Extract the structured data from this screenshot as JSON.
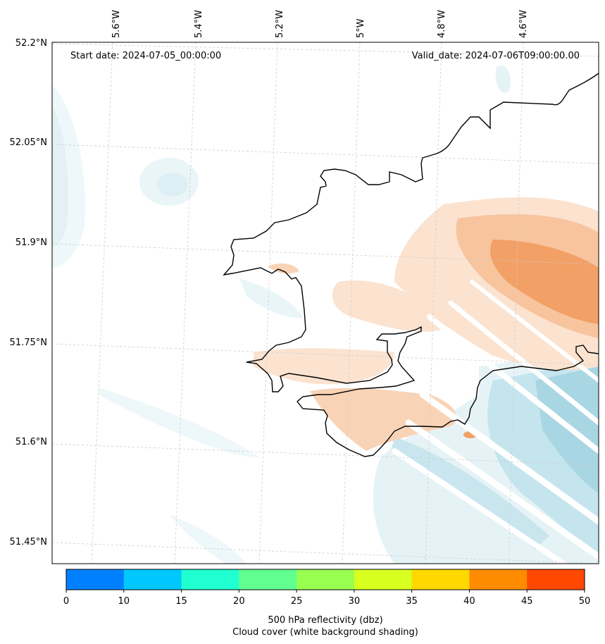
{
  "annotations": {
    "start_date": "Start date: 2024-07-05_00:00:00",
    "valid_date": "Valid_date: 2024-07-06T09:00:00.00"
  },
  "longitude_labels": [
    "5.6°W",
    "5.4°W",
    "5.2°W",
    "5°W",
    "4.8°W",
    "4.6°W"
  ],
  "latitude_labels": [
    "52.2°N",
    "52.05°N",
    "51.9°N",
    "51.75°N",
    "51.6°N",
    "51.45°N"
  ],
  "colorbar": {
    "ticks": [
      "0",
      "10",
      "15",
      "20",
      "25",
      "30",
      "35",
      "40",
      "45",
      "50"
    ],
    "colors": [
      "#0080ff",
      "#00c8ff",
      "#20ffd0",
      "#60ff90",
      "#98ff50",
      "#d8ff20",
      "#ffd800",
      "#ff8c00",
      "#ff4800"
    ],
    "label_line1": "500 hPa reflectivity (dbz)",
    "label_line2": "Cloud cover (white background shading)"
  },
  "colors": {
    "coast": "#000000",
    "gridline": "#cccccc",
    "reflectivity_light": "#fbe3d0",
    "reflectivity_dark": "#f2a066",
    "cloud_light": "#eef7f9",
    "cloud_dark": "#a9d6e3"
  }
}
